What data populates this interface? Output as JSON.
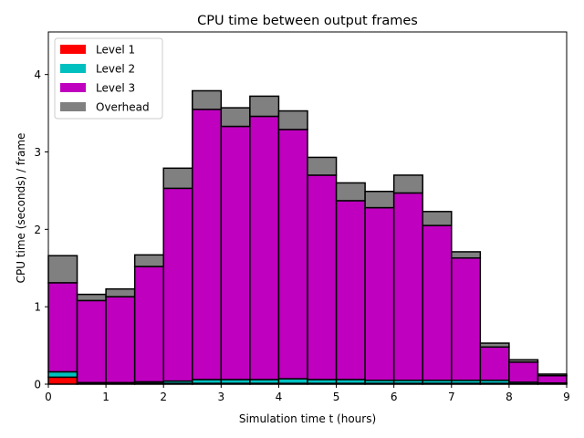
{
  "chart_data": {
    "type": "bar",
    "stacked": true,
    "title": "CPU time between output frames",
    "xlabel": "Simulation time t (hours)",
    "ylabel": "CPU time (seconds) / frame",
    "xlim": [
      0,
      9
    ],
    "ylim": [
      0,
      4.55
    ],
    "xticks": [
      "0",
      "1",
      "2",
      "3",
      "4",
      "5",
      "6",
      "7",
      "8",
      "9"
    ],
    "yticks": [
      "0",
      "1",
      "2",
      "3",
      "4"
    ],
    "bin_width": 0.5,
    "x_start": [
      0,
      0.5,
      1,
      1.5,
      2,
      2.5,
      3,
      3.5,
      4,
      4.5,
      5,
      5.5,
      6,
      6.5,
      7,
      7.5,
      8,
      8.5
    ],
    "legend_position": "upper-left",
    "series": [
      {
        "name": "Level 1",
        "color": "#ff0000",
        "values": [
          0.09,
          0.01,
          0.01,
          0.01,
          0.01,
          0.01,
          0.01,
          0.01,
          0.01,
          0.01,
          0.01,
          0.01,
          0.01,
          0.01,
          0.01,
          0.01,
          0.005,
          0.005
        ]
      },
      {
        "name": "Level 2",
        "color": "#00bfbf",
        "values": [
          0.07,
          0.01,
          0.01,
          0.02,
          0.03,
          0.05,
          0.05,
          0.05,
          0.06,
          0.05,
          0.05,
          0.04,
          0.04,
          0.04,
          0.04,
          0.04,
          0.02,
          0.01
        ]
      },
      {
        "name": "Level 3",
        "color": "#bf00bf",
        "values": [
          1.15,
          1.06,
          1.11,
          1.49,
          2.49,
          3.49,
          3.27,
          3.4,
          3.22,
          2.64,
          2.31,
          2.23,
          2.42,
          2.0,
          1.58,
          0.43,
          0.26,
          0.095
        ]
      },
      {
        "name": "Overhead",
        "color": "#808080",
        "values": [
          0.35,
          0.08,
          0.1,
          0.15,
          0.26,
          0.24,
          0.24,
          0.26,
          0.24,
          0.23,
          0.23,
          0.21,
          0.23,
          0.18,
          0.08,
          0.05,
          0.03,
          0.02
        ]
      }
    ]
  }
}
